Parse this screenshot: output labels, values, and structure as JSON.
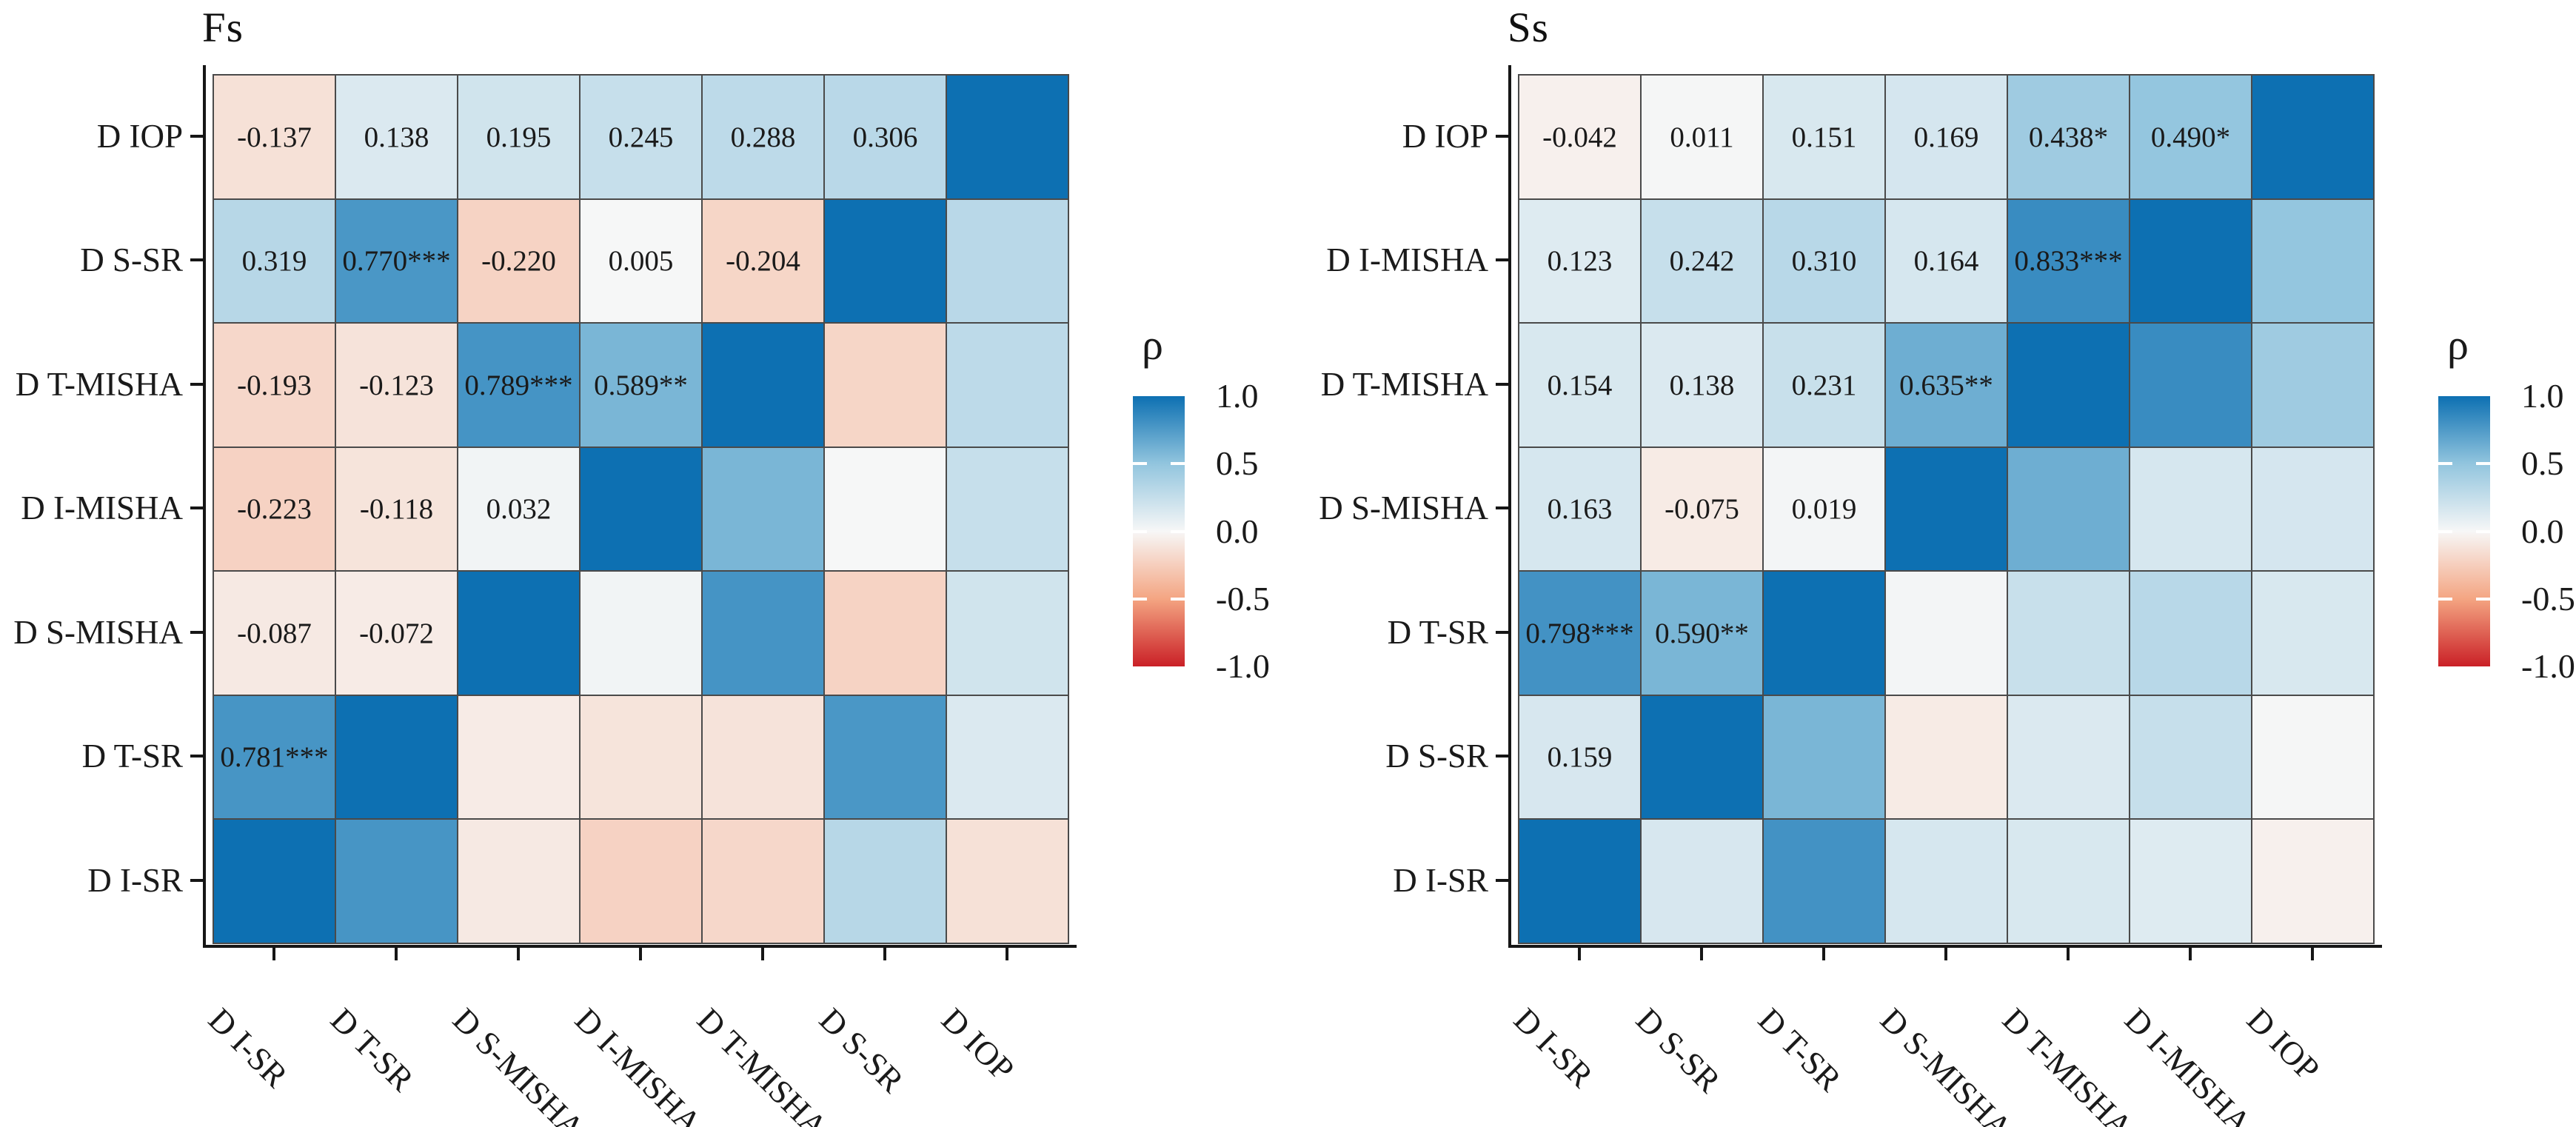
{
  "figure": {
    "background": "#ffffff",
    "text_color": "#1a1a1a",
    "grid_line_color": "#4a4a4a",
    "axis_line_color": "#161616"
  },
  "colormap": {
    "stops": [
      [
        -1.0,
        "#ca2027"
      ],
      [
        -0.5,
        "#f4a582"
      ],
      [
        0.0,
        "#f7f7f7"
      ],
      [
        0.5,
        "#92c5de"
      ],
      [
        1.0,
        "#0d70b2"
      ]
    ]
  },
  "chart_data": [
    {
      "type": "heatmap",
      "title": "Fs",
      "legend_title": "ρ",
      "legend_ticks": [
        "1.0",
        "0.5",
        "0.0",
        "-0.5",
        "-1.0"
      ],
      "value_range": [
        -1,
        1
      ],
      "x_categories": [
        "D I-SR",
        "D T-SR",
        "D S-MISHA",
        "D I-MISHA",
        "D T-MISHA",
        "D S-SR",
        "D IOP"
      ],
      "y_categories": [
        "D IOP",
        "D S-SR",
        "D T-MISHA",
        "D I-MISHA",
        "D S-MISHA",
        "D T-SR",
        "D I-SR"
      ],
      "values": [
        [
          -0.137,
          0.138,
          0.195,
          0.245,
          0.288,
          0.306,
          1.0
        ],
        [
          0.319,
          0.77,
          -0.22,
          0.005,
          -0.204,
          1.0,
          0.306
        ],
        [
          -0.193,
          -0.123,
          0.789,
          0.589,
          1.0,
          -0.204,
          0.288
        ],
        [
          -0.223,
          -0.118,
          0.032,
          1.0,
          0.589,
          0.005,
          0.245
        ],
        [
          -0.087,
          -0.072,
          1.0,
          0.032,
          0.789,
          -0.22,
          0.195
        ],
        [
          0.781,
          1.0,
          -0.072,
          -0.118,
          -0.123,
          0.77,
          0.138
        ],
        [
          1.0,
          0.781,
          -0.087,
          -0.223,
          -0.193,
          0.319,
          -0.137
        ]
      ],
      "labels": [
        [
          "-0.137",
          "0.138",
          "0.195",
          "0.245",
          "0.288",
          "0.306",
          ""
        ],
        [
          "0.319",
          "0.770***",
          "-0.220",
          "0.005",
          "-0.204",
          "",
          ""
        ],
        [
          "-0.193",
          "-0.123",
          "0.789***",
          "0.589**",
          "",
          "",
          ""
        ],
        [
          "-0.223",
          "-0.118",
          "0.032",
          "",
          "",
          "",
          ""
        ],
        [
          "-0.087",
          "-0.072",
          "",
          "",
          "",
          "",
          ""
        ],
        [
          "0.781***",
          "",
          "",
          "",
          "",
          "",
          ""
        ],
        [
          "",
          "",
          "",
          "",
          "",
          "",
          ""
        ]
      ]
    },
    {
      "type": "heatmap",
      "title": "Ss",
      "legend_title": "ρ",
      "legend_ticks": [
        "1.0",
        "0.5",
        "0.0",
        "-0.5",
        "-1.0"
      ],
      "value_range": [
        -1,
        1
      ],
      "x_categories": [
        "D I-SR",
        "D S-SR",
        "D T-SR",
        "D S-MISHA",
        "D T-MISHA",
        "D I-MISHA",
        "D IOP"
      ],
      "y_categories": [
        "D IOP",
        "D I-MISHA",
        "D T-MISHA",
        "D S-MISHA",
        "D T-SR",
        "D S-SR",
        "D I-SR"
      ],
      "values": [
        [
          -0.042,
          0.011,
          0.151,
          0.169,
          0.438,
          0.49,
          1.0
        ],
        [
          0.123,
          0.242,
          0.31,
          0.164,
          0.833,
          1.0,
          0.49
        ],
        [
          0.154,
          0.138,
          0.231,
          0.635,
          1.0,
          0.833,
          0.438
        ],
        [
          0.163,
          -0.075,
          0.019,
          1.0,
          0.635,
          0.164,
          0.169
        ],
        [
          0.798,
          0.59,
          1.0,
          0.019,
          0.231,
          0.31,
          0.151
        ],
        [
          0.159,
          1.0,
          0.59,
          -0.075,
          0.138,
          0.242,
          0.011
        ],
        [
          1.0,
          0.159,
          0.798,
          0.163,
          0.154,
          0.123,
          -0.042
        ]
      ],
      "labels": [
        [
          "-0.042",
          "0.011",
          "0.151",
          "0.169",
          "0.438*",
          "0.490*",
          ""
        ],
        [
          "0.123",
          "0.242",
          "0.310",
          "0.164",
          "0.833***",
          "",
          ""
        ],
        [
          "0.154",
          "0.138",
          "0.231",
          "0.635**",
          "",
          "",
          ""
        ],
        [
          "0.163",
          "-0.075",
          "0.019",
          "",
          "",
          "",
          ""
        ],
        [
          "0.798***",
          "0.590**",
          "",
          "",
          "",
          "",
          ""
        ],
        [
          "0.159",
          "",
          "",
          "",
          "",
          "",
          ""
        ],
        [
          "",
          "",
          "",
          "",
          "",
          "",
          ""
        ]
      ]
    }
  ]
}
